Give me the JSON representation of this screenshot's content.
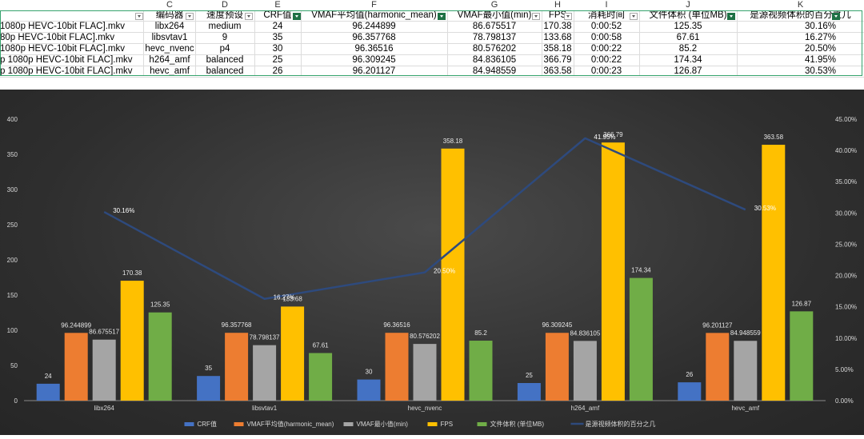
{
  "sheet": {
    "column_letters": [
      "C",
      "D",
      "E",
      "F",
      "G",
      "H",
      "I",
      "J",
      "K"
    ],
    "headers": [
      "编码器",
      "速度预设",
      "CRF值",
      "VMAF平均值(harmonic_mean)",
      "VMAF最小值(min)",
      "FPS",
      "消耗时间",
      "文件体积 (单位MB)",
      "是源视频体积的百分之几"
    ],
    "rows": [
      {
        "file": "1080p HEVC-10bit FLAC].mkv",
        "encoder": "libx264",
        "preset": "medium",
        "crf": "24",
        "vmaf_mean": "96.244899",
        "vmaf_min": "86.675517",
        "fps": "170.38",
        "time": "0:00:52",
        "size": "125.35",
        "percent": "30.16%"
      },
      {
        "file": "80p HEVC-10bit FLAC].mkv",
        "encoder": "libsvtav1",
        "preset": "9",
        "crf": "35",
        "vmaf_mean": "96.357768",
        "vmaf_min": "78.798137",
        "fps": "133.68",
        "time": "0:00:58",
        "size": "67.61",
        "percent": "16.27%"
      },
      {
        "file": "1080p HEVC-10bit FLAC].mkv",
        "encoder": "hevc_nvenc",
        "preset": "p4",
        "crf": "30",
        "vmaf_mean": "96.36516",
        "vmaf_min": "80.576202",
        "fps": "358.18",
        "time": "0:00:22",
        "size": "85.2",
        "percent": "20.50%"
      },
      {
        "file": "p 1080p HEVC-10bit FLAC].mkv",
        "encoder": "h264_amf",
        "preset": "balanced",
        "crf": "25",
        "vmaf_mean": "96.309245",
        "vmaf_min": "84.836105",
        "fps": "366.79",
        "time": "0:00:22",
        "size": "174.34",
        "percent": "41.95%"
      },
      {
        "file": "p 1080p HEVC-10bit FLAC].mkv",
        "encoder": "hevc_amf",
        "preset": "balanced",
        "crf": "26",
        "vmaf_mean": "96.201127",
        "vmaf_min": "84.948559",
        "fps": "363.58",
        "time": "0:00:23",
        "size": "126.87",
        "percent": "30.53%"
      }
    ]
  },
  "chart_data": {
    "type": "bar",
    "categories": [
      "libx264",
      "libsvtav1",
      "hevc_nvenc",
      "h264_amf",
      "hevc_amf"
    ],
    "series": [
      {
        "name": "CRF值",
        "color": "#4472c4",
        "values": [
          24,
          35,
          30,
          25,
          26
        ],
        "labels": [
          "24",
          "35",
          "30",
          "25",
          "26"
        ]
      },
      {
        "name": "VMAF平均值(harmonic_mean)",
        "color": "#ed7d31",
        "values": [
          96.244899,
          96.357768,
          96.36516,
          96.309245,
          96.201127
        ],
        "labels": [
          "96.244899",
          "96.357768",
          "96.36516",
          "96.309245",
          "96.201127"
        ]
      },
      {
        "name": "VMAF最小值(min)",
        "color": "#a5a5a5",
        "values": [
          86.675517,
          78.798137,
          80.576202,
          84.836105,
          84.948559
        ],
        "labels": [
          "86.675517",
          "78.798137",
          "80.576202",
          "84.836105",
          "84.948559"
        ]
      },
      {
        "name": "FPS",
        "color": "#ffc000",
        "values": [
          170.38,
          133.68,
          358.18,
          366.79,
          363.58
        ],
        "labels": [
          "170.38",
          "133.68",
          "358.18",
          "366.79",
          "363.58"
        ]
      },
      {
        "name": "文件体积 (单位MB)",
        "color": "#70ad47",
        "values": [
          125.35,
          67.61,
          85.2,
          174.34,
          126.87
        ],
        "labels": [
          "125.35",
          "67.61",
          "85.2",
          "174.34",
          "126.87"
        ]
      }
    ],
    "line_series": {
      "name": "是源视频体积的百分之几",
      "color": "#2e4a7d",
      "values": [
        30.16,
        16.27,
        20.5,
        41.95,
        30.53
      ],
      "labels": [
        "30.16%",
        "16.27%",
        "20.50%",
        "41.95%",
        "30.53%"
      ]
    },
    "ylim": [
      0,
      400
    ],
    "y_ticks": [
      "0",
      "50",
      "100",
      "150",
      "200",
      "250",
      "300",
      "350",
      "400"
    ],
    "y2lim": [
      0,
      45
    ],
    "y2_ticks": [
      "0.00%",
      "5.00%",
      "10.00%",
      "15.00%",
      "20.00%",
      "25.00%",
      "30.00%",
      "35.00%",
      "40.00%",
      "45.00%"
    ],
    "legend_position": "bottom",
    "grid": false
  }
}
